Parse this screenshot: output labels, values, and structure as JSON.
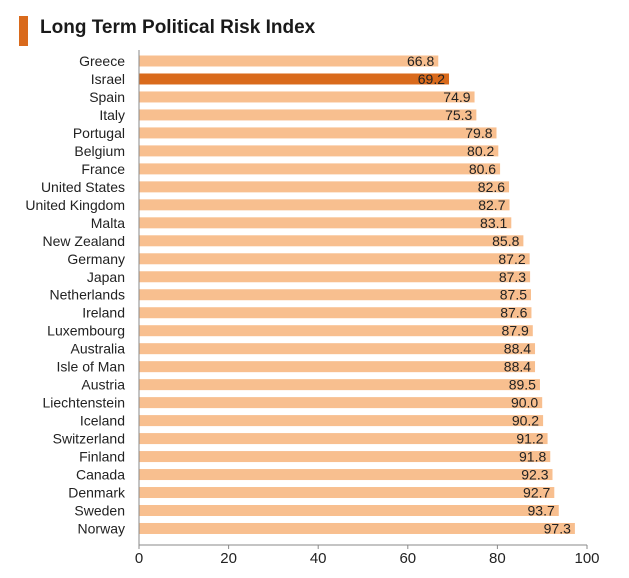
{
  "header": {
    "title": "Long Term Political Risk Index",
    "accent_color": "#d96a1c"
  },
  "chart_data": {
    "type": "bar",
    "orientation": "horizontal",
    "title": "Long Term Political Risk Index",
    "xlabel": "",
    "ylabel": "",
    "xlim": [
      0,
      100
    ],
    "x_ticks": [
      "0",
      "20",
      "40",
      "60",
      "80",
      "100"
    ],
    "grid": false,
    "legend": "none",
    "highlight_category": "Israel",
    "bar_color": "#f8bf8f",
    "highlight_color": "#d96a1c",
    "categories": [
      "Greece",
      "Israel",
      "Spain",
      "Italy",
      "Portugal",
      "Belgium",
      "France",
      "United States",
      "United Kingdom",
      "Malta",
      "New Zealand",
      "Germany",
      "Japan",
      "Netherlands",
      "Ireland",
      "Luxembourg",
      "Australia",
      "Isle of Man",
      "Austria",
      "Liechtenstein",
      "Iceland",
      "Switzerland",
      "Finland",
      "Canada",
      "Denmark",
      "Sweden",
      "Norway"
    ],
    "values": [
      66.8,
      69.2,
      74.9,
      75.3,
      79.8,
      80.2,
      80.6,
      82.6,
      82.7,
      83.1,
      85.8,
      87.2,
      87.3,
      87.5,
      87.6,
      87.9,
      88.4,
      88.4,
      89.5,
      90.0,
      90.2,
      91.2,
      91.8,
      92.3,
      92.7,
      93.7,
      97.3
    ],
    "value_labels": [
      "66.8",
      "69.2",
      "74.9",
      "75.3",
      "79.8",
      "80.2",
      "80.6",
      "82.6",
      "82.7",
      "83.1",
      "85.8",
      "87.2",
      "87.3",
      "87.5",
      "87.6",
      "87.9",
      "88.4",
      "88.4",
      "89.5",
      "90.0",
      "90.2",
      "91.2",
      "91.8",
      "92.3",
      "92.7",
      "93.7",
      "97.3"
    ]
  }
}
